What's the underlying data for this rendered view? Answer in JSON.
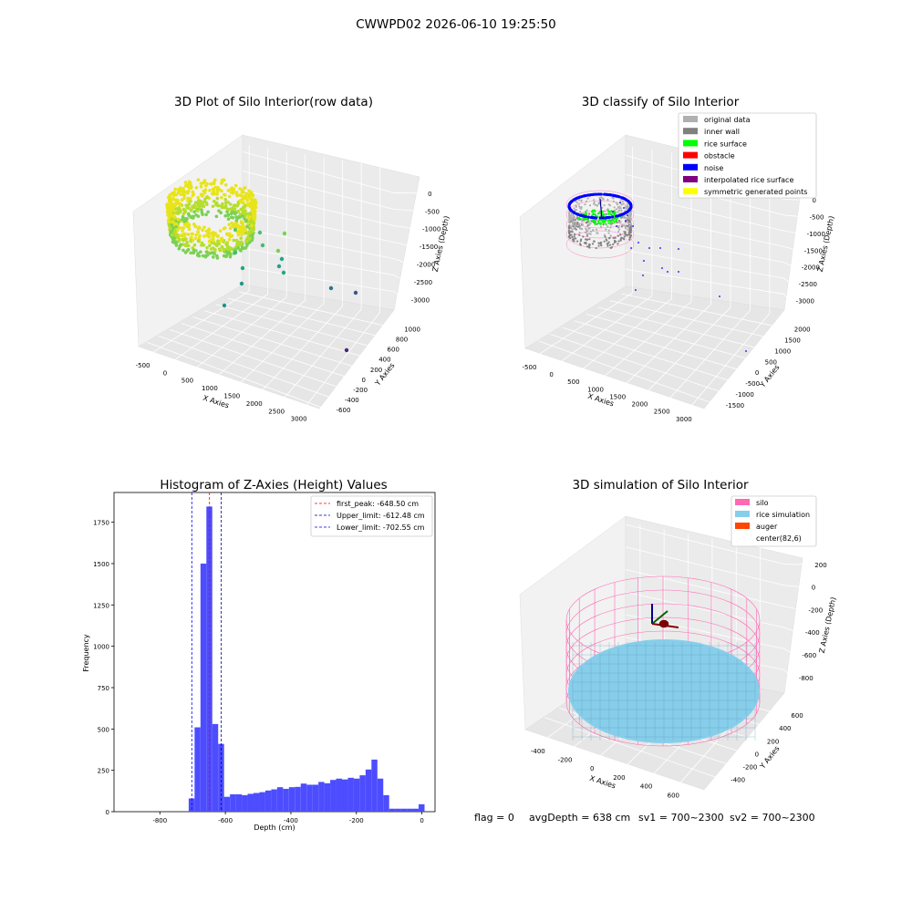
{
  "suptitle": "CWWPD02 2026-06-10 19:25:50",
  "panel1": {
    "title": "3D Plot of Silo Interior(row data)",
    "xlabel": "X Axies",
    "ylabel": "Y Axies",
    "zlabel": "Z Axies (Depth)",
    "xticks": [
      "-500",
      "0",
      "500",
      "1000",
      "1500",
      "2000",
      "2500",
      "3000"
    ],
    "yticks": [
      "1000",
      "800",
      "600",
      "400",
      "200",
      "0",
      "-200",
      "-400",
      "-600"
    ],
    "zticks": [
      "0",
      "-500",
      "-1000",
      "-1500",
      "-2000",
      "-2500",
      "-3000"
    ]
  },
  "panel2": {
    "title": "3D classify of Silo Interior",
    "xlabel": "X Axies",
    "ylabel": "Y Axies",
    "zlabel": "Z Axies (Depth)",
    "xticks": [
      "-500",
      "0",
      "500",
      "1000",
      "1500",
      "2000",
      "2500",
      "3000"
    ],
    "yticks": [
      "2000",
      "1500",
      "1000",
      "500",
      "0",
      "-500",
      "-1000",
      "-1500"
    ],
    "zticks": [
      "0",
      "-500",
      "-1000",
      "-1500",
      "-2000",
      "-2500",
      "-3000"
    ],
    "legend": [
      {
        "label": "original data",
        "color": "#b0b0b0"
      },
      {
        "label": "inner wall",
        "color": "#808080"
      },
      {
        "label": "rice surface",
        "color": "#00ff00"
      },
      {
        "label": "obstacle",
        "color": "#ff0000"
      },
      {
        "label": "noise",
        "color": "#0000ff"
      },
      {
        "label": "interpolated rice surface",
        "color": "#800080"
      },
      {
        "label": "symmetric generated points",
        "color": "#ffff00"
      }
    ]
  },
  "panel3": {
    "title": "Histogram of Z-Axies (Height) Values",
    "xlabel": "Depth (cm)",
    "ylabel": "Frequency",
    "xticks": [
      "-800",
      "-600",
      "-400",
      "-200",
      "0"
    ],
    "yticks": [
      "0",
      "250",
      "500",
      "750",
      "1000",
      "1250",
      "1500",
      "1750"
    ],
    "legend": [
      {
        "label": "first_peak: -648.50 cm",
        "color": "#ff0000"
      },
      {
        "label": "Upper_limit: -612.48 cm",
        "color": "#00008b"
      },
      {
        "label": "Lower_limit: -702.55 cm",
        "color": "#0000ff"
      }
    ]
  },
  "panel4": {
    "title": "3D simulation of Silo Interior",
    "xlabel": "X Axies",
    "ylabel": "Y Axies",
    "zlabel": "Z Axies (Depth)",
    "xticks": [
      "-400",
      "-200",
      "0",
      "200",
      "400",
      "600"
    ],
    "yticks": [
      "600",
      "400",
      "200",
      "0",
      "-200",
      "-400"
    ],
    "zticks": [
      "200",
      "0",
      "-200",
      "-400",
      "-600",
      "-800"
    ],
    "legend": [
      {
        "label": "silo",
        "color": "#ff69b4"
      },
      {
        "label": "rice simulation",
        "color": "#87ceeb"
      },
      {
        "label": "auger",
        "color": "#ff4500"
      },
      {
        "label": "center(82,6)",
        "color": ""
      }
    ]
  },
  "footer": {
    "flag": "flag = 0",
    "avg": "avgDepth = 638 cm",
    "sv1": "sv1 = 700~2300",
    "sv2": "sv2 = 700~2300"
  },
  "chart_data": [
    {
      "type": "scatter",
      "title": "3D Plot of Silo Interior(row data)",
      "xlabel": "X Axies",
      "ylabel": "Y Axies",
      "zlabel": "Z Axies (Depth)",
      "xlim": [
        -600,
        3200
      ],
      "ylim": [
        -700,
        1100
      ],
      "zlim": [
        -3300,
        100
      ],
      "note_series": "dense elliptical ring of points near origin, sparse outliers",
      "grid": true
    },
    {
      "type": "scatter",
      "title": "3D classify of Silo Interior",
      "xlabel": "X Axies",
      "ylabel": "Y Axies",
      "zlabel": "Z Axies (Depth)",
      "xlim": [
        -600,
        3200
      ],
      "ylim": [
        -1600,
        2100
      ],
      "zlim": [
        -3300,
        100
      ],
      "grid": true,
      "legend": "top-right"
    },
    {
      "type": "bar",
      "title": "Histogram of Z-Axies (Height) Values",
      "xlabel": "Depth (cm)",
      "ylabel": "Frequency",
      "xlim": [
        -940,
        40
      ],
      "ylim": [
        0,
        1930
      ],
      "bin_width": 18,
      "bins": [
        {
          "x": -712,
          "v": 80
        },
        {
          "x": -694,
          "v": 510
        },
        {
          "x": -676,
          "v": 1500
        },
        {
          "x": -658,
          "v": 1845
        },
        {
          "x": -640,
          "v": 530
        },
        {
          "x": -622,
          "v": 410
        },
        {
          "x": -604,
          "v": 90
        },
        {
          "x": -586,
          "v": 105
        },
        {
          "x": -568,
          "v": 105
        },
        {
          "x": -550,
          "v": 100
        },
        {
          "x": -532,
          "v": 108
        },
        {
          "x": -514,
          "v": 113
        },
        {
          "x": -496,
          "v": 118
        },
        {
          "x": -478,
          "v": 128
        },
        {
          "x": -460,
          "v": 135
        },
        {
          "x": -442,
          "v": 148
        },
        {
          "x": -424,
          "v": 138
        },
        {
          "x": -406,
          "v": 148
        },
        {
          "x": -388,
          "v": 150
        },
        {
          "x": -370,
          "v": 170
        },
        {
          "x": -352,
          "v": 163
        },
        {
          "x": -334,
          "v": 163
        },
        {
          "x": -316,
          "v": 180
        },
        {
          "x": -298,
          "v": 172
        },
        {
          "x": -280,
          "v": 192
        },
        {
          "x": -262,
          "v": 200
        },
        {
          "x": -244,
          "v": 195
        },
        {
          "x": -226,
          "v": 205
        },
        {
          "x": -208,
          "v": 200
        },
        {
          "x": -190,
          "v": 220
        },
        {
          "x": -172,
          "v": 255
        },
        {
          "x": -154,
          "v": 315
        },
        {
          "x": -136,
          "v": 200
        },
        {
          "x": -118,
          "v": 100
        },
        {
          "x": -100,
          "v": 18
        },
        {
          "x": -82,
          "v": 18
        },
        {
          "x": -64,
          "v": 18
        },
        {
          "x": -46,
          "v": 18
        },
        {
          "x": -28,
          "v": 18
        },
        {
          "x": -10,
          "v": 45
        }
      ],
      "vlines": [
        {
          "name": "first_peak: -648.50 cm",
          "x": -648.5
        },
        {
          "name": "Upper_limit: -612.48 cm",
          "x": -612.48
        },
        {
          "name": "Lower_limit: -702.55 cm",
          "x": -702.55
        }
      ],
      "legend": "top-right"
    },
    {
      "type": "scatter",
      "title": "3D simulation of Silo Interior",
      "xlabel": "X Axies",
      "ylabel": "Y Axies",
      "zlabel": "Z Axies (Depth)",
      "xlim": [
        -500,
        700
      ],
      "ylim": [
        -500,
        700
      ],
      "zlim": [
        -850,
        300
      ],
      "grid": true,
      "legend": "top-right"
    }
  ]
}
